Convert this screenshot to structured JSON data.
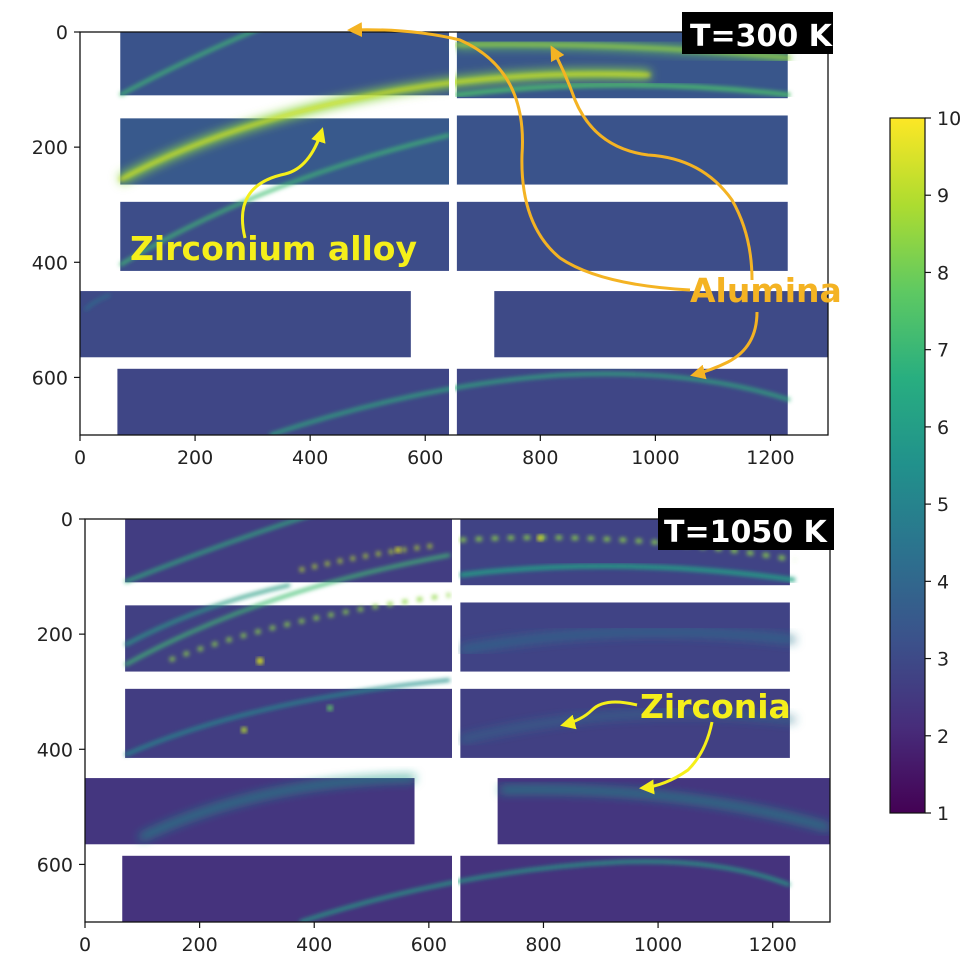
{
  "chart_data": [
    {
      "type": "heatmap",
      "title": "T=300 K",
      "xlim": [
        0,
        1300
      ],
      "ylim": [
        700,
        0
      ],
      "xticks": [
        0,
        200,
        400,
        600,
        800,
        1000,
        1200
      ],
      "yticks": [
        0,
        200,
        400,
        600
      ],
      "detector_panels": [
        {
          "x": [
            70,
            645
          ],
          "y": [
            0,
            110
          ],
          "level": 3.3
        },
        {
          "x": [
            655,
            1230
          ],
          "y": [
            0,
            115
          ],
          "level": 3.4
        },
        {
          "x": [
            70,
            645
          ],
          "y": [
            150,
            265
          ],
          "level": 3.5
        },
        {
          "x": [
            655,
            1230
          ],
          "y": [
            145,
            265
          ],
          "level": 3.3
        },
        {
          "x": [
            70,
            645
          ],
          "y": [
            295,
            415
          ],
          "level": 3.1
        },
        {
          "x": [
            655,
            1230
          ],
          "y": [
            295,
            415
          ],
          "level": 3.1
        },
        {
          "x": [
            0,
            575
          ],
          "y": [
            450,
            565
          ],
          "level": 3.0
        },
        {
          "x": [
            720,
            1300
          ],
          "y": [
            450,
            565
          ],
          "level": 3.0
        },
        {
          "x": [
            65,
            645
          ],
          "y": [
            585,
            700
          ],
          "level": 2.9
        },
        {
          "x": [
            655,
            1230
          ],
          "y": [
            585,
            700
          ],
          "level": 2.9
        }
      ],
      "annotations": [
        "Zirconium alloy",
        "Alumina"
      ]
    },
    {
      "type": "heatmap",
      "title": "T=1050 K",
      "xlim": [
        0,
        1300
      ],
      "ylim": [
        700,
        0
      ],
      "xticks": [
        0,
        200,
        400,
        600,
        800,
        1000,
        1200
      ],
      "yticks": [
        0,
        200,
        400,
        600
      ],
      "detector_panels": [
        {
          "x": [
            70,
            645
          ],
          "y": [
            0,
            110
          ],
          "level": 2.6
        },
        {
          "x": [
            655,
            1230
          ],
          "y": [
            0,
            115
          ],
          "level": 2.8
        },
        {
          "x": [
            70,
            645
          ],
          "y": [
            150,
            265
          ],
          "level": 2.7
        },
        {
          "x": [
            655,
            1230
          ],
          "y": [
            145,
            265
          ],
          "level": 2.8
        },
        {
          "x": [
            70,
            645
          ],
          "y": [
            295,
            415
          ],
          "level": 2.6
        },
        {
          "x": [
            655,
            1230
          ],
          "y": [
            295,
            415
          ],
          "level": 2.7
        },
        {
          "x": [
            0,
            575
          ],
          "y": [
            450,
            565
          ],
          "level": 2.4
        },
        {
          "x": [
            720,
            1300
          ],
          "y": [
            450,
            565
          ],
          "level": 2.4
        },
        {
          "x": [
            65,
            645
          ],
          "y": [
            585,
            700
          ],
          "level": 2.3
        },
        {
          "x": [
            655,
            1230
          ],
          "y": [
            585,
            700
          ],
          "level": 2.3
        }
      ],
      "annotations": [
        "Zirconia"
      ]
    }
  ],
  "colorbar": {
    "range": [
      1,
      10
    ],
    "ticks": [
      "1",
      "2",
      "3",
      "4",
      "5",
      "6",
      "7",
      "8",
      "9",
      "10"
    ],
    "colormap": "viridis"
  },
  "colors": {
    "viridis_low": "#440154",
    "viridis_mid": "#21918c",
    "viridis_high": "#fde725",
    "annotation_yellow": "#f5ef1a",
    "annotation_orange": "#f4b323"
  }
}
